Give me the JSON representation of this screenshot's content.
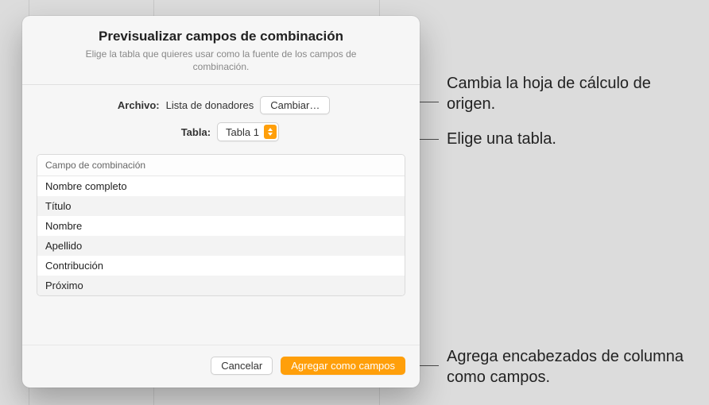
{
  "dialog": {
    "title": "Previsualizar campos de combinación",
    "subtitle": "Elige la tabla que quieres usar como la fuente de los campos de combinación.",
    "file_label": "Archivo:",
    "file_value": "Lista de donadores",
    "change_button": "Cambiar…",
    "table_label": "Tabla:",
    "table_value": "Tabla 1",
    "column_header": "Campo de combinación",
    "rows": [
      "Nombre completo",
      "Título",
      "Nombre",
      "Apellido",
      "Contribución",
      "Próximo"
    ],
    "cancel_button": "Cancelar",
    "add_button": "Agregar como campos"
  },
  "callouts": {
    "c1": "Cambia la hoja de cálculo de origen.",
    "c2": "Elige una tabla.",
    "c3": "Agrega encabezados de columna como campos."
  },
  "colors": {
    "accent": "#ff9f0a",
    "dialog_bg": "#f6f6f6",
    "border": "#d0d0d0"
  }
}
